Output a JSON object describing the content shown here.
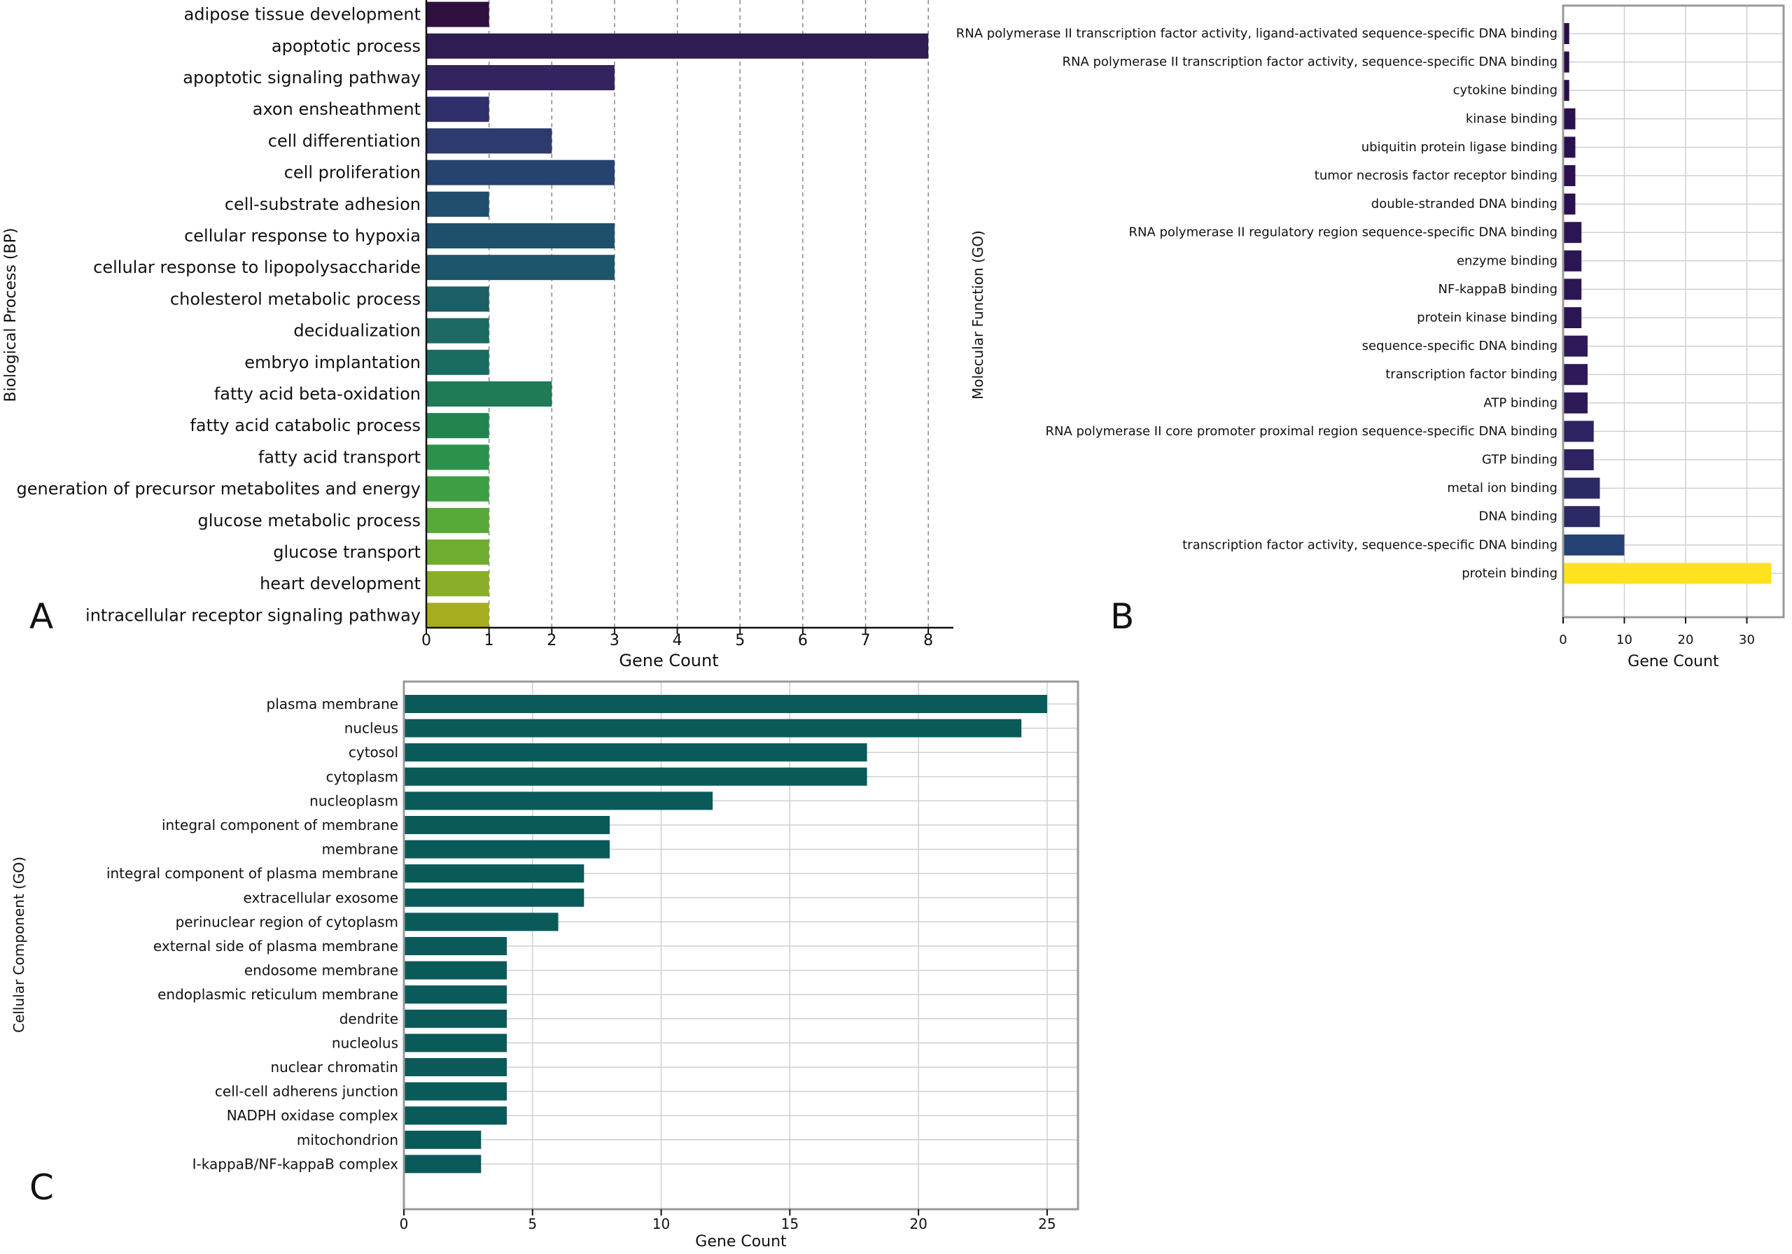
{
  "panels": {
    "A": {
      "letter": "A"
    },
    "B": {
      "letter": "B"
    },
    "C": {
      "letter": "C"
    }
  },
  "chart_data": [
    {
      "id": "A",
      "type": "bar",
      "orientation": "horizontal",
      "xlabel": "Gene Count",
      "ylabel": "Biological Process (BP)",
      "xlim": [
        0,
        8.4
      ],
      "xticks": [
        0,
        1,
        2,
        3,
        4,
        5,
        6,
        7,
        8
      ],
      "grid": "x-dashed",
      "colormap": "viridis",
      "categories": [
        "adipose tissue development",
        "apoptotic process",
        "apoptotic signaling pathway",
        "axon ensheathment",
        "cell differentiation",
        "cell proliferation",
        "cell-substrate adhesion",
        "cellular response to hypoxia",
        "cellular response to lipopolysaccharide",
        "cholesterol metabolic process",
        "decidualization",
        "embryo implantation",
        "fatty acid beta-oxidation",
        "fatty acid catabolic process",
        "fatty acid transport",
        "generation of precursor metabolites and energy",
        "glucose metabolic process",
        "glucose transport",
        "heart development",
        "intracellular receptor signaling pathway"
      ],
      "values": [
        1,
        8,
        3,
        1,
        2,
        3,
        1,
        3,
        3,
        1,
        1,
        1,
        2,
        1,
        1,
        1,
        1,
        1,
        1,
        1
      ],
      "colors": [
        "#2f0f3e",
        "#2f1c52",
        "#33245f",
        "#2f2f6b",
        "#2d3a6d",
        "#26426e",
        "#214e6e",
        "#1e506c",
        "#1d556a",
        "#1b5e65",
        "#1c6a62",
        "#1a6b60",
        "#1f7a55",
        "#23844e",
        "#2c914a",
        "#3d9e44",
        "#58a83a",
        "#6fac30",
        "#8aad2a",
        "#a6ae1f"
      ]
    },
    {
      "id": "B",
      "type": "bar",
      "orientation": "horizontal",
      "xlabel": "Gene Count",
      "ylabel": "Molecular Function (GO)",
      "xlim": [
        0,
        36
      ],
      "xticks": [
        0,
        10,
        20,
        30
      ],
      "grid": "xy",
      "colormap": "viridis",
      "categories": [
        "RNA polymerase II transcription factor activity, ligand-activated sequence-specific DNA binding",
        "RNA polymerase II transcription factor activity, sequence-specific DNA binding",
        "cytokine binding",
        "kinase binding",
        "ubiquitin protein ligase binding",
        "tumor necrosis factor receptor binding",
        "double-stranded DNA binding",
        "RNA polymerase II regulatory region sequence-specific DNA binding",
        "enzyme binding",
        "NF-kappaB binding",
        "protein kinase binding",
        "sequence-specific DNA binding",
        "transcription factor binding",
        "ATP binding",
        "RNA polymerase II core promoter proximal region sequence-specific DNA binding",
        "GTP binding",
        "metal ion binding",
        "DNA binding",
        "transcription factor activity, sequence-specific DNA binding",
        "protein binding"
      ],
      "values": [
        1,
        1,
        1,
        2,
        2,
        2,
        2,
        3,
        3,
        3,
        3,
        4,
        4,
        4,
        5,
        5,
        6,
        6,
        10,
        34
      ],
      "colors": [
        "#2a0f4a",
        "#2a0f4a",
        "#2a0f4a",
        "#2b1150",
        "#2b1150",
        "#2b1150",
        "#2b1150",
        "#2c1554",
        "#2c1554",
        "#2c1554",
        "#2c1554",
        "#2e1a58",
        "#2e1a58",
        "#2e1a58",
        "#2e2260",
        "#2e2260",
        "#2c2a64",
        "#2c2a64",
        "#244273",
        "#fde21d"
      ]
    },
    {
      "id": "C",
      "type": "bar",
      "orientation": "horizontal",
      "xlabel": "Gene Count",
      "ylabel": "Cellular Component (GO)",
      "xlim": [
        0,
        26.2
      ],
      "xticks": [
        0,
        5,
        10,
        15,
        20,
        25
      ],
      "grid": "xy",
      "color": "#0a5a5a",
      "categories": [
        "plasma membrane",
        "nucleus",
        "cytosol",
        "cytoplasm",
        "nucleoplasm",
        "integral component of membrane",
        "membrane",
        "integral component of plasma membrane",
        "extracellular exosome",
        "perinuclear region of cytoplasm",
        "external side of plasma membrane",
        "endosome membrane",
        "endoplasmic reticulum membrane",
        "dendrite",
        "nucleolus",
        "nuclear chromatin",
        "cell-cell adherens junction",
        "NADPH oxidase complex",
        "mitochondrion",
        "I-kappaB/NF-kappaB complex"
      ],
      "values": [
        25,
        24,
        18,
        18,
        12,
        8,
        8,
        7,
        7,
        6,
        4,
        4,
        4,
        4,
        4,
        4,
        4,
        4,
        3,
        3
      ]
    }
  ]
}
